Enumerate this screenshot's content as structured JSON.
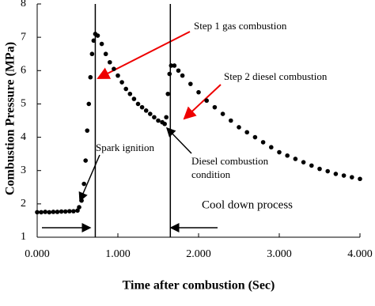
{
  "chart_data": {
    "type": "scatter",
    "xlabel": "Time after combustion (Sec)",
    "ylabel": "Combustion Pressure (MPa)",
    "x": [
      0,
      0.05,
      0.1,
      0.15,
      0.2,
      0.25,
      0.3,
      0.35,
      0.4,
      0.45,
      0.5,
      0.52,
      0.55,
      0.58,
      0.6,
      0.62,
      0.64,
      0.66,
      0.68,
      0.7,
      0.72,
      0.75,
      0.8,
      0.85,
      0.9,
      0.95,
      1.0,
      1.05,
      1.1,
      1.15,
      1.2,
      1.25,
      1.3,
      1.35,
      1.4,
      1.45,
      1.5,
      1.55,
      1.58,
      1.6,
      1.62,
      1.64,
      1.66,
      1.7,
      1.75,
      1.8,
      1.9,
      2.0,
      2.1,
      2.2,
      2.3,
      2.4,
      2.5,
      2.6,
      2.7,
      2.8,
      2.9,
      3.0,
      3.1,
      3.2,
      3.3,
      3.4,
      3.5,
      3.6,
      3.7,
      3.8,
      3.9,
      4.0
    ],
    "values": [
      1.75,
      1.75,
      1.76,
      1.75,
      1.76,
      1.76,
      1.77,
      1.77,
      1.78,
      1.78,
      1.8,
      1.9,
      2.1,
      2.6,
      3.3,
      4.2,
      5.0,
      5.8,
      6.5,
      6.9,
      7.1,
      7.05,
      6.8,
      6.5,
      6.25,
      6.05,
      5.85,
      5.65,
      5.45,
      5.3,
      5.15,
      5.0,
      4.9,
      4.8,
      4.7,
      4.6,
      4.5,
      4.45,
      4.4,
      4.6,
      5.3,
      5.9,
      6.15,
      6.15,
      6.0,
      5.85,
      5.6,
      5.35,
      5.1,
      4.9,
      4.7,
      4.5,
      4.3,
      4.15,
      4.0,
      3.85,
      3.7,
      3.55,
      3.45,
      3.35,
      3.25,
      3.15,
      3.05,
      2.98,
      2.9,
      2.85,
      2.8,
      2.75
    ],
    "color": "#000000",
    "xlim": [
      0,
      4
    ],
    "ylim": [
      1,
      8
    ],
    "xticks": [
      {
        "value": 0,
        "label": "0.000"
      },
      {
        "value": 1,
        "label": "1.000"
      },
      {
        "value": 2,
        "label": "2.000"
      },
      {
        "value": 3,
        "label": "3.000"
      },
      {
        "value": 4,
        "label": "4.000"
      }
    ],
    "yticks": [
      1,
      2,
      3,
      4,
      5,
      6,
      7,
      8
    ],
    "reference_lines": [
      0.72,
      1.65
    ],
    "annotations": [
      "Step 1 gas combustion",
      "Step 2 diesel combustion",
      "Spark ignition",
      "Diesel combustion",
      "condition",
      "Cool down process"
    ]
  }
}
